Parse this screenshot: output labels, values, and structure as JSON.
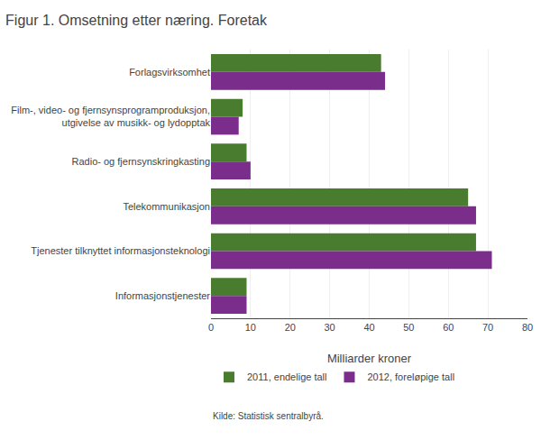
{
  "chart_data": {
    "type": "bar",
    "orientation": "horizontal",
    "title": "Figur 1. Omsetning etter næring. Foretak",
    "categories": [
      "Forlagsvirksomhet",
      "Film-, video- og fjernsynsprogramproduksjon,\nutgivelse av musikk- og lydopptak",
      "Radio- og fjernsynskringkasting",
      "Telekommunikasjon",
      "Tjenester tilknyttet informasjonsteknologi",
      "Informasjonstjenester"
    ],
    "series": [
      {
        "name": "2011, endelige tall",
        "color": "#4a7c2f",
        "values": [
          43,
          8,
          9,
          65,
          67,
          9
        ]
      },
      {
        "name": "2012, foreløpige tall",
        "color": "#7b2d8b",
        "values": [
          44,
          7,
          10,
          67,
          71,
          9
        ]
      }
    ],
    "xlabel": "Milliarder kroner",
    "xlim": [
      0,
      80
    ],
    "xticks": [
      0,
      10,
      20,
      30,
      40,
      50,
      60,
      70,
      80
    ],
    "grid": true,
    "legend": "bottom",
    "annotations": [
      "Kilde: Statistisk sentralbyrå."
    ]
  }
}
